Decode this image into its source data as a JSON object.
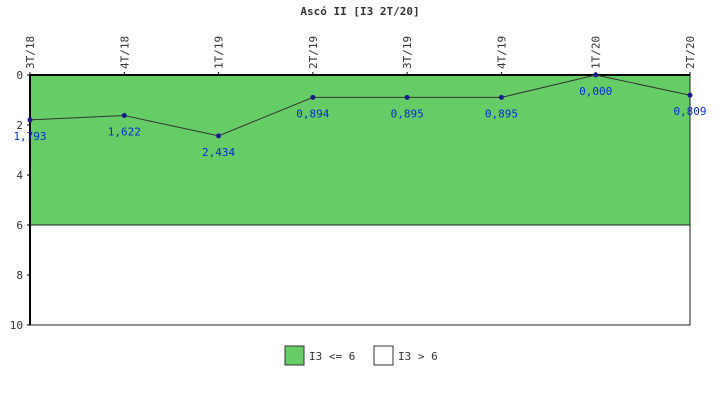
{
  "chart_data": {
    "type": "line",
    "title": "Ascó II [I3 2T/20]",
    "categories": [
      "3T/18",
      "4T/18",
      "1T/19",
      "2T/19",
      "3T/19",
      "4T/19",
      "1T/20",
      "2T/20"
    ],
    "series": [
      {
        "values": [
          1.793,
          1.622,
          2.434,
          0.894,
          0.895,
          0.895,
          0.0,
          0.809
        ],
        "value_labels": [
          "1,793",
          "1,622",
          "2,434",
          "0,894",
          "0,895",
          "0,895",
          "0,000",
          "0,809"
        ],
        "color": "#333333",
        "marker_color": "#1a1a8c"
      }
    ],
    "y_axis": {
      "reversed": true,
      "ylim": [
        0,
        10
      ],
      "ticks": [
        "0",
        "2",
        "4",
        "6",
        "8",
        "10"
      ],
      "tick_values": [
        0,
        2,
        4,
        6,
        8,
        10
      ]
    },
    "bands": [
      {
        "from": 0,
        "to": 6,
        "color": "#66cc66",
        "legend": "I3 <= 6"
      },
      {
        "from": 6,
        "to": 10,
        "color": "#ffffff",
        "legend": "I3 > 6"
      }
    ],
    "legend_position": "bottom-center",
    "label_color": "#0a2ad6"
  }
}
